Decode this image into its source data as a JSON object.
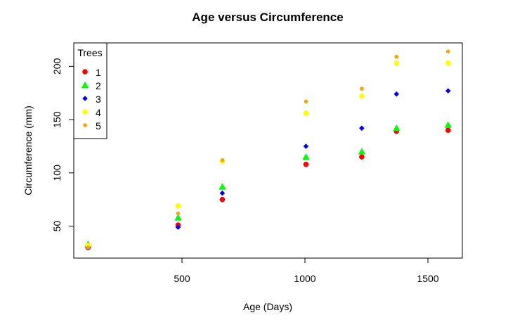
{
  "chart_data": {
    "type": "scatter",
    "title": "Age versus Circumference",
    "xlabel": "Age (Days)",
    "ylabel": "Circumference (mm)",
    "xlim": [
      60,
      1640
    ],
    "ylim": [
      20,
      222
    ],
    "xticks": [
      500,
      1000,
      1500
    ],
    "yticks": [
      50,
      100,
      150,
      200
    ],
    "legend": {
      "title": "Trees",
      "placement": "top-left"
    },
    "x": [
      118,
      484,
      664,
      1004,
      1231,
      1372,
      1582
    ],
    "series": [
      {
        "name": "1",
        "color": "#ff0000",
        "marker": "circle",
        "values": [
          30,
          51,
          75,
          108,
          115,
          139,
          140
        ]
      },
      {
        "name": "2",
        "color": "#00ff00",
        "marker": "triangle",
        "values": [
          33,
          58,
          87,
          115,
          120,
          142,
          145
        ]
      },
      {
        "name": "3",
        "color": "#0000ff",
        "marker": "diamond",
        "values": [
          30,
          49,
          81,
          125,
          142,
          174,
          177
        ]
      },
      {
        "name": "4",
        "color": "#ffff00",
        "marker": "circle",
        "values": [
          32,
          69,
          111,
          156,
          172,
          203,
          203
        ]
      },
      {
        "name": "5",
        "color": "#ffa500",
        "marker": "small-circle",
        "values": [
          30,
          62,
          112,
          167,
          179,
          209,
          214
        ]
      }
    ]
  }
}
